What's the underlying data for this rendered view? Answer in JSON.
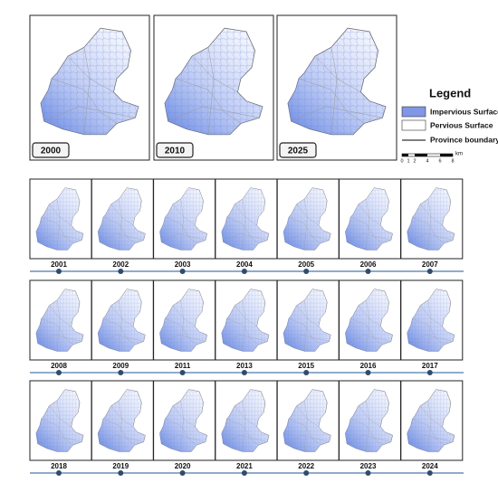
{
  "top_panels": [
    "2000",
    "2010",
    "2025"
  ],
  "legend": {
    "title": "Legend",
    "items": [
      "Impervious Surface",
      "Pervious Surface",
      "Province boundary"
    ]
  },
  "scale_bar": {
    "ticks": [
      "0",
      "1",
      "2",
      "4",
      "6",
      "8"
    ],
    "unit": "km"
  },
  "rows": [
    [
      "2001",
      "2002",
      "2003",
      "2004",
      "2005",
      "2006",
      "2007"
    ],
    [
      "2008",
      "2009",
      "2011",
      "2013",
      "2015",
      "2016",
      "2017"
    ],
    [
      "2018",
      "2019",
      "2020",
      "2021",
      "2022",
      "2023",
      "2024"
    ]
  ]
}
